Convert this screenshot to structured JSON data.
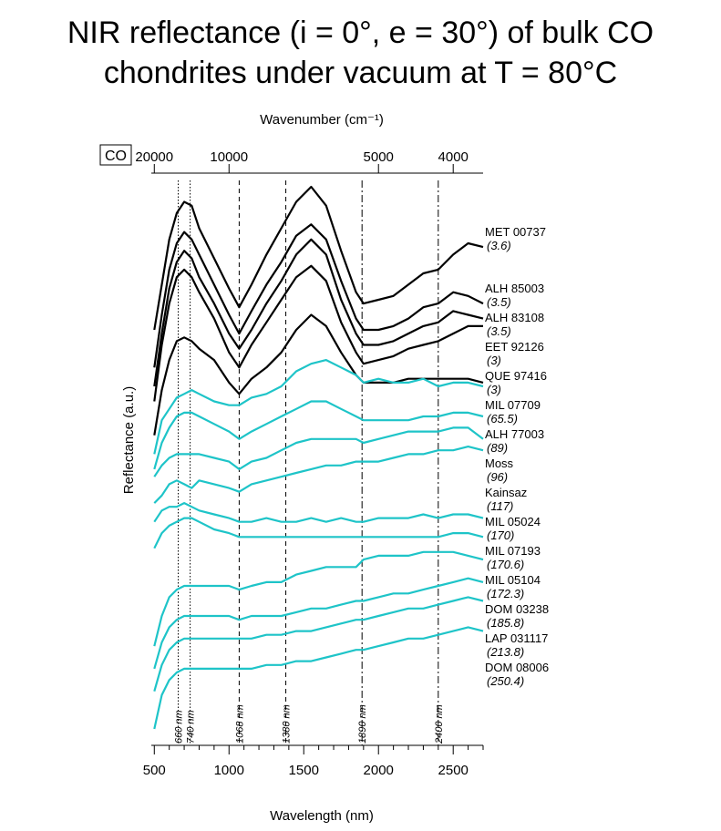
{
  "title_lines": [
    "NIR reflectance (i = 0°, e = 30°) of bulk CO",
    "chondrites under vacuum at T = 80°C"
  ],
  "chart_data": {
    "type": "line",
    "title": "NIR reflectance (i = 0°, e = 30°) of bulk CO chondrites under vacuum at T = 80°C",
    "group_label": "CO",
    "xlabel": "Wavelength (nm)",
    "xlabel_top": "Wavenumber (cm⁻¹)",
    "ylabel": "Reflectance (a.u.)",
    "xlim": [
      480,
      2700
    ],
    "xticks": [
      500,
      1000,
      1500,
      2000,
      2500
    ],
    "xticks_top": [
      20000,
      10000,
      5000,
      4000
    ],
    "grid": false,
    "y_scale": "arbitrary, spectra offset vertically",
    "colors": {
      "low_temperature": "#000000",
      "high_temperature": "#1ec4c8"
    },
    "reference_lines": [
      {
        "x": 660,
        "label": "660 nm",
        "style": "dotted"
      },
      {
        "x": 740,
        "label": "740 nm",
        "style": "dotted"
      },
      {
        "x": 1068,
        "label": "1068 nm",
        "style": "dashed"
      },
      {
        "x": 1380,
        "label": "1380 nm",
        "style": "dashed"
      },
      {
        "x": 1890,
        "label": "1890 nm",
        "style": "dashdot"
      },
      {
        "x": 2400,
        "label": "2400 nm",
        "style": "dashdot"
      }
    ],
    "series": [
      {
        "name": "MET 00737",
        "value": "(3.6)",
        "color": "#000000",
        "x": [
          500,
          550,
          600,
          650,
          700,
          750,
          800,
          900,
          1000,
          1068,
          1150,
          1250,
          1350,
          1450,
          1550,
          1650,
          1750,
          1850,
          1900,
          2000,
          2100,
          2200,
          2300,
          2400,
          2500,
          2600,
          2700
        ],
        "y": [
          4.2,
          5.4,
          6.6,
          7.3,
          7.6,
          7.5,
          6.9,
          6.1,
          5.3,
          4.8,
          5.4,
          6.2,
          6.9,
          7.6,
          8.0,
          7.5,
          6.3,
          5.2,
          4.9,
          5.0,
          5.1,
          5.4,
          5.7,
          5.8,
          6.2,
          6.5,
          6.4
        ]
      },
      {
        "name": "ALH 85003",
        "value": "(3.5)",
        "color": "#000000",
        "x": [
          500,
          550,
          600,
          650,
          700,
          750,
          800,
          900,
          1000,
          1068,
          1150,
          1250,
          1350,
          1450,
          1550,
          1650,
          1750,
          1850,
          1900,
          2000,
          2100,
          2200,
          2300,
          2400,
          2500,
          2600,
          2700
        ],
        "y": [
          3.2,
          4.6,
          5.8,
          6.5,
          6.8,
          6.6,
          6.2,
          5.4,
          4.6,
          4.1,
          4.7,
          5.4,
          6.0,
          6.7,
          7.0,
          6.6,
          5.5,
          4.5,
          4.2,
          4.2,
          4.3,
          4.5,
          4.8,
          4.9,
          5.2,
          5.1,
          4.9
        ]
      },
      {
        "name": "ALH 83108",
        "value": "(3.5)",
        "color": "#000000",
        "x": [
          500,
          550,
          600,
          650,
          700,
          750,
          800,
          900,
          1000,
          1068,
          1150,
          1250,
          1350,
          1450,
          1550,
          1650,
          1750,
          1850,
          1900,
          2000,
          2100,
          2200,
          2300,
          2400,
          2500,
          2600,
          2700
        ],
        "y": [
          2.7,
          4.1,
          5.3,
          6.0,
          6.3,
          6.1,
          5.6,
          4.9,
          4.1,
          3.7,
          4.2,
          4.9,
          5.5,
          6.2,
          6.6,
          6.2,
          5.0,
          4.1,
          3.8,
          3.8,
          3.9,
          4.1,
          4.3,
          4.4,
          4.7,
          4.6,
          4.5
        ]
      },
      {
        "name": "EET 92126",
        "value": "(3)",
        "color": "#000000",
        "x": [
          500,
          550,
          600,
          650,
          700,
          750,
          800,
          900,
          1000,
          1068,
          1150,
          1250,
          1350,
          1450,
          1550,
          1650,
          1750,
          1850,
          1900,
          2000,
          2100,
          2200,
          2300,
          2400,
          2500,
          2600,
          2700
        ],
        "y": [
          2.3,
          3.8,
          4.9,
          5.6,
          5.8,
          5.6,
          5.2,
          4.5,
          3.6,
          3.2,
          3.8,
          4.4,
          5.0,
          5.6,
          5.9,
          5.5,
          4.4,
          3.6,
          3.3,
          3.4,
          3.5,
          3.7,
          3.8,
          3.9,
          4.1,
          4.3,
          4.3
        ]
      },
      {
        "name": "QUE 97416",
        "value": "(3)",
        "color": "#000000",
        "x": [
          500,
          550,
          600,
          650,
          700,
          750,
          800,
          900,
          1000,
          1068,
          1150,
          1250,
          1350,
          1450,
          1550,
          1650,
          1750,
          1850,
          1900,
          2000,
          2100,
          2200,
          2300,
          2400,
          2500,
          2600,
          2700
        ],
        "y": [
          1.4,
          2.6,
          3.4,
          3.9,
          4.0,
          3.9,
          3.7,
          3.4,
          2.8,
          2.5,
          2.9,
          3.2,
          3.6,
          4.2,
          4.6,
          4.3,
          3.6,
          3.0,
          2.8,
          2.8,
          2.8,
          2.9,
          2.9,
          2.9,
          2.9,
          2.9,
          2.8
        ]
      },
      {
        "name": "MIL 07709",
        "value": "(65.5)",
        "color": "#1ec4c8",
        "x": [
          500,
          550,
          600,
          650,
          700,
          750,
          800,
          900,
          1000,
          1068,
          1150,
          1250,
          1350,
          1450,
          1550,
          1650,
          1750,
          1850,
          1900,
          2000,
          2100,
          2200,
          2300,
          2400,
          2500,
          2600,
          2700
        ],
        "y": [
          0.9,
          1.8,
          2.1,
          2.4,
          2.5,
          2.6,
          2.5,
          2.3,
          2.2,
          2.2,
          2.4,
          2.5,
          2.7,
          3.1,
          3.3,
          3.4,
          3.2,
          3.0,
          2.8,
          2.9,
          2.8,
          2.8,
          2.9,
          2.7,
          2.8,
          2.8,
          2.7
        ]
      },
      {
        "name": "ALH 77003",
        "value": "(89)",
        "color": "#1ec4c8",
        "x": [
          500,
          550,
          600,
          650,
          700,
          750,
          800,
          900,
          1000,
          1068,
          1150,
          1250,
          1350,
          1450,
          1550,
          1650,
          1750,
          1850,
          1900,
          2000,
          2100,
          2200,
          2300,
          2400,
          2500,
          2600,
          2700
        ],
        "y": [
          0.5,
          1.2,
          1.6,
          1.9,
          2.0,
          2.0,
          1.9,
          1.7,
          1.5,
          1.3,
          1.5,
          1.7,
          1.9,
          2.1,
          2.3,
          2.3,
          2.1,
          1.9,
          1.8,
          1.8,
          1.8,
          1.8,
          1.9,
          1.9,
          2.0,
          2.0,
          1.9
        ]
      },
      {
        "name": "Moss",
        "value": "(96)",
        "color": "#1ec4c8",
        "x": [
          500,
          550,
          600,
          650,
          700,
          750,
          800,
          900,
          1000,
          1068,
          1150,
          1250,
          1350,
          1450,
          1550,
          1650,
          1750,
          1850,
          1900,
          2000,
          2100,
          2200,
          2300,
          2400,
          2500,
          2600,
          2700
        ],
        "y": [
          0.3,
          0.6,
          0.8,
          0.9,
          0.9,
          0.9,
          0.9,
          0.8,
          0.7,
          0.5,
          0.7,
          0.8,
          1.0,
          1.2,
          1.3,
          1.3,
          1.3,
          1.3,
          1.2,
          1.3,
          1.4,
          1.5,
          1.5,
          1.5,
          1.6,
          1.6,
          1.3
        ]
      },
      {
        "name": "Kainsaz",
        "value": "(117)",
        "color": "#1ec4c8",
        "x": [
          500,
          550,
          600,
          650,
          700,
          750,
          800,
          900,
          1000,
          1068,
          1150,
          1250,
          1350,
          1450,
          1550,
          1650,
          1750,
          1850,
          1900,
          2000,
          2100,
          2200,
          2300,
          2400,
          2500,
          2600,
          2700
        ],
        "y": [
          -0.4,
          -0.2,
          0.1,
          0.2,
          0.1,
          0.0,
          0.2,
          0.1,
          0.0,
          -0.1,
          0.1,
          0.2,
          0.3,
          0.4,
          0.5,
          0.6,
          0.6,
          0.7,
          0.7,
          0.7,
          0.8,
          0.9,
          0.9,
          1.0,
          1.0,
          1.1,
          1.0
        ]
      },
      {
        "name": "MIL 05024",
        "value": "(170)",
        "color": "#1ec4c8",
        "x": [
          500,
          550,
          600,
          650,
          700,
          750,
          800,
          900,
          1000,
          1068,
          1150,
          1250,
          1350,
          1450,
          1550,
          1650,
          1750,
          1850,
          1900,
          2000,
          2100,
          2200,
          2300,
          2400,
          2500,
          2600,
          2700
        ],
        "y": [
          -0.9,
          -0.6,
          -0.5,
          -0.5,
          -0.4,
          -0.5,
          -0.6,
          -0.7,
          -0.8,
          -0.9,
          -0.9,
          -0.8,
          -0.9,
          -0.9,
          -0.8,
          -0.9,
          -0.8,
          -0.9,
          -0.9,
          -0.8,
          -0.8,
          -0.8,
          -0.7,
          -0.8,
          -0.7,
          -0.7,
          -0.8
        ]
      },
      {
        "name": "MIL 07193",
        "value": "(170.6)",
        "color": "#1ec4c8",
        "x": [
          500,
          550,
          600,
          650,
          700,
          750,
          800,
          900,
          1000,
          1068,
          1150,
          1250,
          1350,
          1450,
          1550,
          1650,
          1750,
          1850,
          1900,
          2000,
          2100,
          2200,
          2300,
          2400,
          2500,
          2600,
          2700
        ],
        "y": [
          -1.6,
          -1.2,
          -1.0,
          -0.9,
          -0.8,
          -0.8,
          -0.9,
          -1.1,
          -1.2,
          -1.3,
          -1.3,
          -1.3,
          -1.3,
          -1.3,
          -1.3,
          -1.3,
          -1.3,
          -1.3,
          -1.3,
          -1.3,
          -1.3,
          -1.3,
          -1.3,
          -1.3,
          -1.2,
          -1.2,
          -1.3
        ]
      },
      {
        "name": "MIL 05104",
        "value": "(172.3)",
        "color": "#1ec4c8",
        "x": [
          500,
          550,
          600,
          650,
          700,
          750,
          800,
          900,
          1000,
          1068,
          1150,
          1250,
          1350,
          1450,
          1550,
          1650,
          1750,
          1850,
          1900,
          2000,
          2100,
          2200,
          2300,
          2400,
          2500,
          2600,
          2700
        ],
        "y": [
          -4.2,
          -3.4,
          -2.9,
          -2.7,
          -2.6,
          -2.6,
          -2.6,
          -2.6,
          -2.6,
          -2.7,
          -2.6,
          -2.5,
          -2.5,
          -2.3,
          -2.2,
          -2.1,
          -2.1,
          -2.1,
          -1.9,
          -1.8,
          -1.8,
          -1.8,
          -1.7,
          -1.7,
          -1.7,
          -1.8,
          -1.9
        ]
      },
      {
        "name": "DOM 03238",
        "value": "(185.8)",
        "color": "#1ec4c8",
        "x": [
          500,
          550,
          600,
          650,
          700,
          750,
          800,
          900,
          1000,
          1068,
          1150,
          1250,
          1350,
          1450,
          1550,
          1650,
          1750,
          1850,
          1900,
          2000,
          2100,
          2200,
          2300,
          2400,
          2500,
          2600,
          2700
        ],
        "y": [
          -4.8,
          -4.1,
          -3.7,
          -3.5,
          -3.4,
          -3.4,
          -3.4,
          -3.4,
          -3.4,
          -3.5,
          -3.4,
          -3.4,
          -3.4,
          -3.3,
          -3.2,
          -3.2,
          -3.1,
          -3.0,
          -3.0,
          -2.9,
          -2.8,
          -2.8,
          -2.7,
          -2.6,
          -2.5,
          -2.4,
          -2.5
        ]
      },
      {
        "name": "LAP 031117",
        "value": "(213.8)",
        "color": "#1ec4c8",
        "x": [
          500,
          550,
          600,
          650,
          700,
          750,
          800,
          900,
          1000,
          1068,
          1150,
          1250,
          1350,
          1450,
          1550,
          1650,
          1750,
          1850,
          1900,
          2000,
          2100,
          2200,
          2300,
          2400,
          2500,
          2600,
          2700
        ],
        "y": [
          -5.4,
          -4.7,
          -4.3,
          -4.1,
          -4.0,
          -4.0,
          -4.0,
          -4.0,
          -4.0,
          -4.0,
          -4.0,
          -3.9,
          -3.9,
          -3.8,
          -3.8,
          -3.7,
          -3.6,
          -3.5,
          -3.5,
          -3.4,
          -3.3,
          -3.2,
          -3.2,
          -3.1,
          -3.0,
          -2.9,
          -3.0
        ]
      },
      {
        "name": "DOM 08006",
        "value": "(250.4)",
        "color": "#1ec4c8",
        "x": [
          500,
          550,
          600,
          650,
          700,
          750,
          800,
          900,
          1000,
          1068,
          1150,
          1250,
          1350,
          1450,
          1550,
          1650,
          1750,
          1850,
          1900,
          2000,
          2100,
          2200,
          2300,
          2400,
          2500,
          2600,
          2700
        ],
        "y": [
          -6.4,
          -5.5,
          -5.1,
          -4.9,
          -4.8,
          -4.8,
          -4.8,
          -4.8,
          -4.8,
          -4.8,
          -4.8,
          -4.7,
          -4.7,
          -4.6,
          -4.6,
          -4.5,
          -4.4,
          -4.3,
          -4.3,
          -4.2,
          -4.1,
          -4.0,
          -4.0,
          -3.9,
          -3.8,
          -3.7,
          -3.8
        ]
      }
    ]
  }
}
